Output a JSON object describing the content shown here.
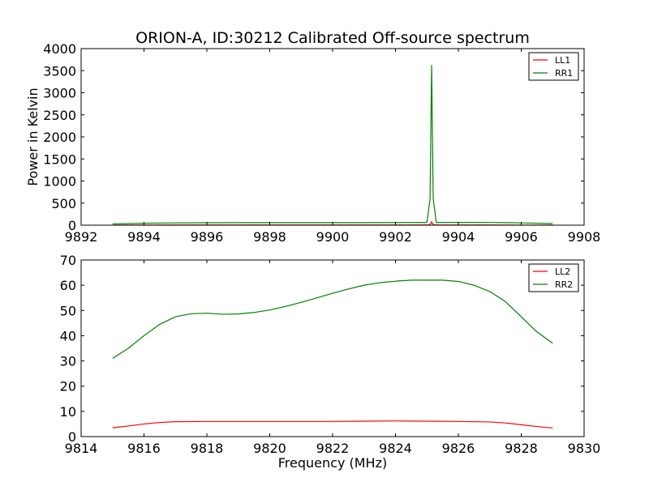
{
  "figure_title": "ORION-A, ID:30212 Calibrated Off-source spectrum",
  "colors": {
    "LL": "#ff0000",
    "RR": "#008000"
  },
  "chart_data": [
    {
      "type": "line",
      "title": "ORION-A, ID:30212 Calibrated Off-source spectrum",
      "xlabel": "",
      "ylabel": "Power in Kelvin",
      "xlim": [
        9892,
        9908
      ],
      "ylim": [
        0,
        4000
      ],
      "xticks": [
        9892,
        9894,
        9896,
        9898,
        9900,
        9902,
        9904,
        9906,
        9908
      ],
      "yticks": [
        0,
        500,
        1000,
        1500,
        2000,
        2500,
        3000,
        3500,
        4000
      ],
      "legend_position": "top-right",
      "series": [
        {
          "name": "LL1",
          "color": "#ff0000",
          "x": [
            9893.0,
            9895.0,
            9900.0,
            9903.05,
            9903.12,
            9903.15,
            9903.18,
            9903.25,
            9905.0,
            9907.0
          ],
          "y": [
            3,
            4,
            4,
            5,
            30,
            80,
            30,
            5,
            4,
            3
          ]
        },
        {
          "name": "RR1",
          "color": "#008000",
          "x": [
            9893.0,
            9893.5,
            9894.0,
            9895.0,
            9896.0,
            9897.0,
            9898.0,
            9899.0,
            9900.0,
            9901.0,
            9902.0,
            9903.0,
            9903.1,
            9903.15,
            9903.2,
            9903.3,
            9904.0,
            9904.5,
            9905.0,
            9905.5,
            9906.0,
            9906.5,
            9907.0
          ],
          "y": [
            31,
            38,
            45,
            52,
            55,
            57,
            58,
            58,
            58,
            58,
            59,
            60,
            600,
            3620,
            600,
            60,
            62,
            62,
            61,
            58,
            52,
            45,
            37
          ]
        }
      ]
    },
    {
      "type": "line",
      "title": "",
      "xlabel": "Frequency (MHz)",
      "ylabel": "",
      "xlim": [
        9814,
        9830
      ],
      "ylim": [
        0,
        70
      ],
      "xticks": [
        9814,
        9816,
        9818,
        9820,
        9822,
        9824,
        9826,
        9828,
        9830
      ],
      "yticks": [
        0,
        10,
        20,
        30,
        40,
        50,
        60,
        70
      ],
      "legend_position": "top-right",
      "series": [
        {
          "name": "LL2",
          "color": "#ff0000",
          "x": [
            9815.0,
            9815.5,
            9816.0,
            9816.5,
            9817.0,
            9818.0,
            9819.0,
            9820.0,
            9821.0,
            9822.0,
            9823.0,
            9824.0,
            9825.0,
            9826.0,
            9827.0,
            9827.5,
            9828.0,
            9828.5,
            9829.0
          ],
          "y": [
            3.5,
            4.2,
            5.0,
            5.6,
            5.9,
            6.0,
            6.0,
            6.0,
            6.0,
            6.0,
            6.1,
            6.2,
            6.1,
            6.0,
            5.8,
            5.4,
            4.7,
            4.0,
            3.4
          ]
        },
        {
          "name": "RR2",
          "color": "#008000",
          "x": [
            9815.0,
            9815.5,
            9816.0,
            9816.5,
            9817.0,
            9817.5,
            9818.0,
            9818.5,
            9819.0,
            9819.5,
            9820.0,
            9820.5,
            9821.0,
            9821.5,
            9822.0,
            9822.5,
            9823.0,
            9823.5,
            9824.0,
            9824.5,
            9825.0,
            9825.5,
            9826.0,
            9826.5,
            9827.0,
            9827.5,
            9828.0,
            9828.5,
            9829.0
          ],
          "y": [
            31,
            35,
            40,
            44.5,
            47.5,
            48.7,
            48.9,
            48.5,
            48.6,
            49.2,
            50.2,
            51.6,
            53.2,
            55.0,
            56.8,
            58.5,
            60.0,
            61.0,
            61.6,
            62.0,
            62.0,
            62.0,
            61.5,
            60.0,
            57.5,
            53.5,
            47.5,
            41.5,
            37.0
          ]
        }
      ]
    }
  ]
}
